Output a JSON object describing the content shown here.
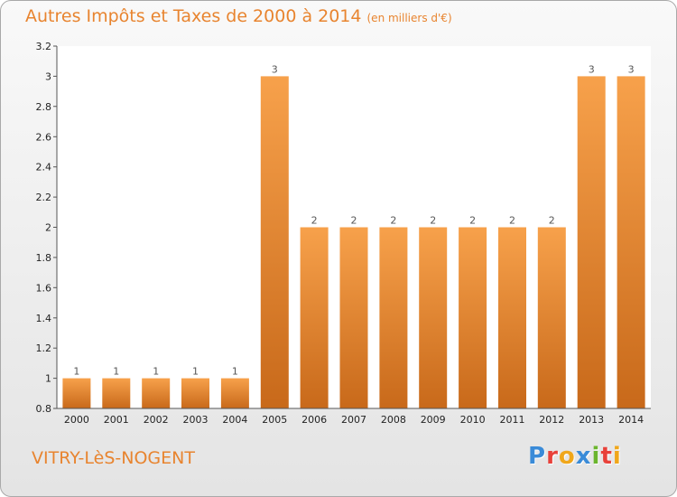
{
  "title": "Autres Impôts et Taxes de 2000 à 2014",
  "subtitle": "(en milliers d'€)",
  "location": "VITRY-LèS-NOGENT",
  "logo": "Proxiti",
  "colors": {
    "accent": "#e8842f",
    "bar_light": "#f7a14b",
    "bar_dark": "#c8691a",
    "logo_letters": [
      "#3a8bd8",
      "#e8413a",
      "#f0a71b",
      "#3a8bd8",
      "#6bb52e",
      "#e8413a",
      "#f0a71b"
    ]
  },
  "chart_data": {
    "type": "bar",
    "title": "Autres Impôts et Taxes de 2000 à 2014",
    "subtitle": "(en milliers d'€)",
    "xlabel": "",
    "ylabel": "",
    "categories": [
      "2000",
      "2001",
      "2002",
      "2003",
      "2004",
      "2005",
      "2006",
      "2007",
      "2008",
      "2009",
      "2010",
      "2011",
      "2012",
      "2013",
      "2014"
    ],
    "values": [
      1,
      1,
      1,
      1,
      1,
      3,
      2,
      2,
      2,
      2,
      2,
      2,
      2,
      3,
      3
    ],
    "data_labels": [
      "1",
      "1",
      "1",
      "1",
      "1",
      "3",
      "2",
      "2",
      "2",
      "2",
      "2",
      "2",
      "2",
      "3",
      "3"
    ],
    "ylim": [
      0.8,
      3.2
    ],
    "yticks": [
      0.8,
      1,
      1.2,
      1.4,
      1.6,
      1.8,
      2,
      2.2,
      2.4,
      2.6,
      2.8,
      3,
      3.2
    ],
    "ytick_labels": [
      "0.8",
      "1",
      "1.2",
      "1.4",
      "1.6",
      "1.8",
      "2",
      "2.2",
      "2.4",
      "2.6",
      "2.8",
      "3",
      "3.2"
    ],
    "grid": false,
    "legend": "none"
  }
}
